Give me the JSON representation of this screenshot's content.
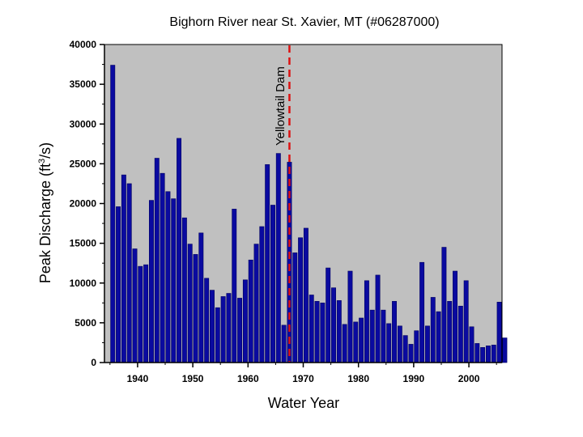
{
  "chart_data": {
    "type": "bar",
    "title": "Bighorn River near St. Xavier, MT (#06287000)",
    "xlabel": "Water Year",
    "ylabel_main": "Peak Discharge (ft",
    "ylabel_sup": "3",
    "ylabel_tail": "/s)",
    "xlim": [
      1934,
      2006
    ],
    "ylim": [
      0,
      40000
    ],
    "x_ticks": [
      "1940",
      "1950",
      "1960",
      "1970",
      "1980",
      "1990",
      "2000"
    ],
    "y_ticks": [
      "0",
      "5000",
      "10000",
      "15000",
      "20000",
      "25000",
      "30000",
      "35000",
      "40000"
    ],
    "grid": false,
    "legend": "none",
    "colors": {
      "plot_bg": "#c0c0c0",
      "bar": "#0a0aa0",
      "bar_edge": "#000060",
      "dam_line": "#dd1111"
    },
    "annotation": {
      "label": "Yellowtail Dam",
      "x": 1967.5
    },
    "series": [
      {
        "x": [
          1935,
          1936,
          1937,
          1938,
          1939,
          1940,
          1941,
          1942,
          1943,
          1944,
          1945,
          1946,
          1947,
          1948,
          1949,
          1950,
          1951,
          1952,
          1953,
          1954,
          1955,
          1956,
          1957,
          1958,
          1959,
          1960,
          1961,
          1962,
          1963,
          1964,
          1965,
          1966,
          1967,
          1968,
          1969,
          1970,
          1971,
          1972,
          1973,
          1974,
          1975,
          1976,
          1977,
          1978,
          1979,
          1980,
          1981,
          1982,
          1983,
          1984,
          1985,
          1986,
          1987,
          1988,
          1989,
          1990,
          1991,
          1992,
          1993,
          1994,
          1995,
          1996,
          1997,
          1998,
          1999,
          2000,
          2001,
          2002,
          2003,
          2004,
          2005,
          2006
        ],
        "values": [
          37400,
          19600,
          23600,
          22500,
          14300,
          12100,
          12300,
          20400,
          25700,
          23800,
          21500,
          20600,
          28200,
          18200,
          14900,
          13600,
          16300,
          10600,
          9100,
          6900,
          8300,
          8700,
          19300,
          8100,
          10400,
          12900,
          14900,
          17100,
          24900,
          19800,
          26300,
          4700,
          25200,
          13800,
          15700,
          16900,
          8500,
          7700,
          7500,
          11900,
          9400,
          7800,
          4800,
          11500,
          5100,
          5600,
          10300,
          6600,
          11000,
          6600,
          4900,
          7700,
          4600,
          3400,
          2300,
          4000,
          12600,
          4600,
          8200,
          6400,
          14500,
          7700,
          11500,
          7100,
          10300,
          4500,
          2400,
          1900,
          2100,
          2200,
          7600,
          3100
        ]
      }
    ]
  }
}
